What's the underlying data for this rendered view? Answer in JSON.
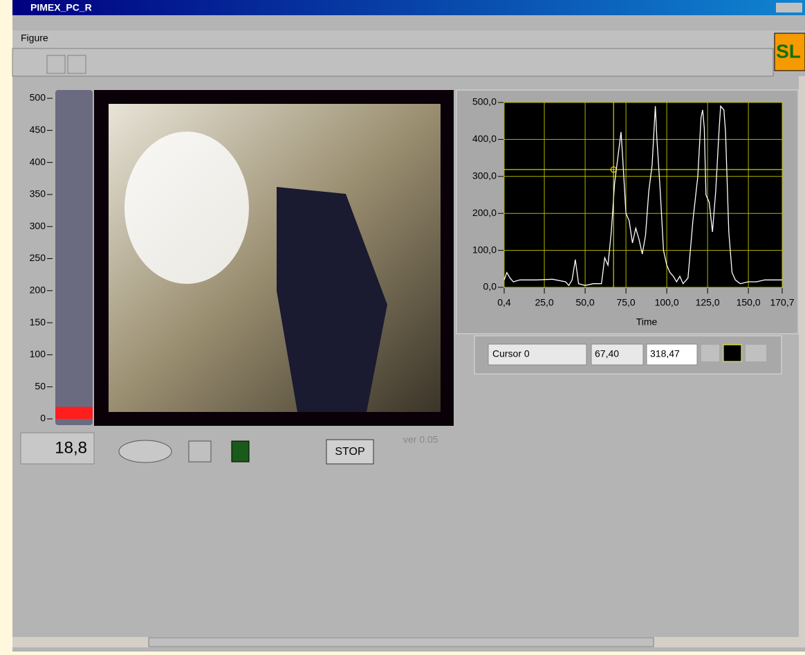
{
  "window": {
    "title": "PIMEX_PC_R",
    "menu": [
      "Figure"
    ],
    "logo": "SL",
    "stop_button": "STOP",
    "version": "ver 0.05"
  },
  "chart_data": [
    {
      "type": "bar",
      "values": [
        18.8
      ],
      "value_labels": [
        "18,8"
      ],
      "color": "#ff1e1e",
      "ylim": [
        0,
        500
      ],
      "yticks": [
        0,
        50,
        100,
        150,
        200,
        250,
        300,
        350,
        400,
        450,
        500
      ]
    },
    {
      "type": "line",
      "x_label": "Time",
      "color": "#ffffff",
      "grid": true,
      "grid_color": "#b4b400",
      "x": [
        0.4,
        2,
        4,
        6,
        10,
        20,
        30,
        38,
        40,
        42,
        44,
        46,
        50,
        55,
        60,
        62,
        64,
        66,
        68,
        70,
        72,
        73,
        75,
        77,
        79,
        81,
        83,
        85,
        87,
        89,
        91,
        93,
        94,
        96,
        98,
        100,
        102,
        104,
        106,
        108,
        110,
        113,
        116,
        118,
        119,
        121,
        122,
        123,
        124,
        126,
        128,
        130,
        132,
        133,
        135,
        136,
        138,
        140,
        142,
        145,
        150,
        155,
        160,
        165,
        170.7
      ],
      "values": [
        20,
        40,
        25,
        15,
        20,
        20,
        22,
        15,
        5,
        20,
        75,
        10,
        5,
        10,
        10,
        80,
        60,
        150,
        280,
        350,
        420,
        350,
        200,
        180,
        120,
        160,
        130,
        90,
        140,
        260,
        330,
        490,
        400,
        260,
        100,
        60,
        40,
        30,
        15,
        30,
        10,
        25,
        180,
        260,
        300,
        460,
        480,
        430,
        250,
        230,
        150,
        260,
        420,
        490,
        480,
        420,
        150,
        40,
        20,
        10,
        15,
        15,
        20,
        20,
        20
      ],
      "xlim": [
        0.4,
        170.7
      ],
      "ylim": [
        0,
        500
      ],
      "xticks": [
        {
          "value": 0.4,
          "label": "0,4"
        },
        {
          "value": 25,
          "label": "25,0"
        },
        {
          "value": 50,
          "label": "50,0"
        },
        {
          "value": 75,
          "label": "75,0"
        },
        {
          "value": 100,
          "label": "100,0"
        },
        {
          "value": 125,
          "label": "125,0"
        },
        {
          "value": 150,
          "label": "150,0"
        },
        {
          "value": 170.7,
          "label": "170,7"
        }
      ],
      "yticks": [
        {
          "value": 0,
          "label": "0,0"
        },
        {
          "value": 100,
          "label": "100,0"
        },
        {
          "value": 200,
          "label": "200,0"
        },
        {
          "value": 300,
          "label": "300,0"
        },
        {
          "value": 400,
          "label": "400,0"
        },
        {
          "value": 500,
          "label": "500,0"
        }
      ],
      "cursor": {
        "name": "Cursor 0",
        "color": "#ffff00",
        "x": {
          "value": 67.4,
          "label": "67,40"
        },
        "y": {
          "value": 318.47,
          "label": "318,47"
        }
      }
    }
  ]
}
